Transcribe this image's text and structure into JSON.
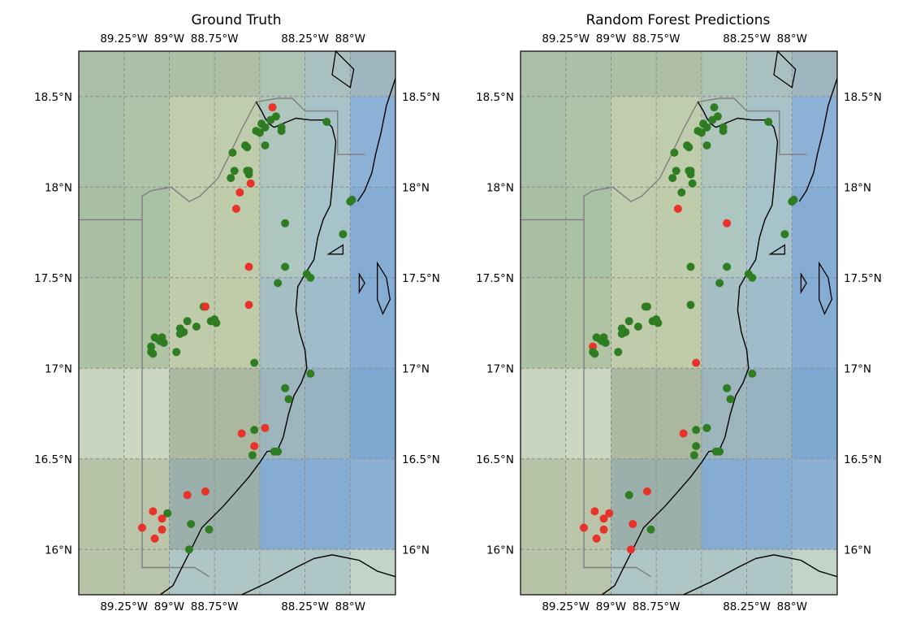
{
  "maps": [
    {
      "title": "Ground Truth",
      "points": [
        {
          "lat": 18.44,
          "lon": -88.43,
          "c": "r"
        },
        {
          "lat": 18.39,
          "lon": -88.41,
          "c": "g"
        },
        {
          "lat": 18.37,
          "lon": -88.44,
          "c": "g"
        },
        {
          "lat": 18.35,
          "lon": -88.49,
          "c": "g"
        },
        {
          "lat": 18.33,
          "lon": -88.47,
          "c": "g"
        },
        {
          "lat": 18.31,
          "lon": -88.52,
          "c": "g"
        },
        {
          "lat": 18.3,
          "lon": -88.5,
          "c": "g"
        },
        {
          "lat": 18.33,
          "lon": -88.38,
          "c": "g"
        },
        {
          "lat": 18.31,
          "lon": -88.38,
          "c": "g"
        },
        {
          "lat": 18.36,
          "lon": -88.13,
          "c": "g"
        },
        {
          "lat": 18.23,
          "lon": -88.47,
          "c": "g"
        },
        {
          "lat": 18.23,
          "lon": -88.58,
          "c": "g"
        },
        {
          "lat": 18.22,
          "lon": -88.57,
          "c": "g"
        },
        {
          "lat": 18.19,
          "lon": -88.65,
          "c": "g"
        },
        {
          "lat": 18.09,
          "lon": -88.64,
          "c": "g"
        },
        {
          "lat": 18.09,
          "lon": -88.57,
          "c": "g"
        },
        {
          "lat": 18.09,
          "lon": -88.56,
          "c": "g"
        },
        {
          "lat": 18.07,
          "lon": -88.56,
          "c": "g"
        },
        {
          "lat": 18.05,
          "lon": -88.66,
          "c": "g"
        },
        {
          "lat": 18.02,
          "lon": -88.55,
          "c": "r"
        },
        {
          "lat": 17.97,
          "lon": -88.61,
          "c": "r"
        },
        {
          "lat": 17.88,
          "lon": -88.63,
          "c": "r"
        },
        {
          "lat": 17.92,
          "lon": -88.0,
          "c": "g"
        },
        {
          "lat": 17.93,
          "lon": -87.99,
          "c": "g"
        },
        {
          "lat": 17.8,
          "lon": -88.36,
          "c": "g"
        },
        {
          "lat": 17.74,
          "lon": -88.04,
          "c": "g"
        },
        {
          "lat": 17.56,
          "lon": -88.36,
          "c": "g"
        },
        {
          "lat": 17.56,
          "lon": -88.56,
          "c": "r"
        },
        {
          "lat": 17.52,
          "lon": -88.24,
          "c": "g"
        },
        {
          "lat": 17.5,
          "lon": -88.22,
          "c": "g"
        },
        {
          "lat": 17.47,
          "lon": -88.4,
          "c": "g"
        },
        {
          "lat": 17.35,
          "lon": -88.56,
          "c": "r"
        },
        {
          "lat": 17.34,
          "lon": -88.81,
          "c": "g"
        },
        {
          "lat": 17.34,
          "lon": -88.8,
          "c": "r"
        },
        {
          "lat": 17.27,
          "lon": -88.75,
          "c": "g"
        },
        {
          "lat": 17.26,
          "lon": -88.77,
          "c": "g"
        },
        {
          "lat": 17.26,
          "lon": -88.9,
          "c": "g"
        },
        {
          "lat": 17.25,
          "lon": -88.74,
          "c": "g"
        },
        {
          "lat": 17.23,
          "lon": -88.85,
          "c": "g"
        },
        {
          "lat": 17.22,
          "lon": -88.94,
          "c": "g"
        },
        {
          "lat": 17.2,
          "lon": -88.92,
          "c": "g"
        },
        {
          "lat": 17.19,
          "lon": -88.94,
          "c": "g"
        },
        {
          "lat": 17.17,
          "lon": -89.08,
          "c": "g"
        },
        {
          "lat": 17.17,
          "lon": -89.04,
          "c": "g"
        },
        {
          "lat": 17.16,
          "lon": -89.06,
          "c": "g"
        },
        {
          "lat": 17.15,
          "lon": -89.05,
          "c": "g"
        },
        {
          "lat": 17.14,
          "lon": -89.03,
          "c": "g"
        },
        {
          "lat": 17.12,
          "lon": -89.1,
          "c": "g"
        },
        {
          "lat": 17.09,
          "lon": -89.1,
          "c": "g"
        },
        {
          "lat": 17.08,
          "lon": -89.09,
          "c": "g"
        },
        {
          "lat": 17.09,
          "lon": -88.96,
          "c": "g"
        },
        {
          "lat": 17.03,
          "lon": -88.53,
          "c": "g"
        },
        {
          "lat": 16.97,
          "lon": -88.22,
          "c": "g"
        },
        {
          "lat": 16.89,
          "lon": -88.36,
          "c": "g"
        },
        {
          "lat": 16.83,
          "lon": -88.34,
          "c": "g"
        },
        {
          "lat": 16.67,
          "lon": -88.47,
          "c": "r"
        },
        {
          "lat": 16.66,
          "lon": -88.53,
          "c": "g"
        },
        {
          "lat": 16.64,
          "lon": -88.6,
          "c": "r"
        },
        {
          "lat": 16.57,
          "lon": -88.53,
          "c": "r"
        },
        {
          "lat": 16.54,
          "lon": -88.42,
          "c": "g"
        },
        {
          "lat": 16.54,
          "lon": -88.4,
          "c": "g"
        },
        {
          "lat": 16.52,
          "lon": -88.54,
          "c": "g"
        },
        {
          "lat": 16.32,
          "lon": -88.8,
          "c": "r"
        },
        {
          "lat": 16.3,
          "lon": -88.9,
          "c": "r"
        },
        {
          "lat": 16.21,
          "lon": -89.09,
          "c": "r"
        },
        {
          "lat": 16.2,
          "lon": -89.01,
          "c": "g"
        },
        {
          "lat": 16.17,
          "lon": -89.04,
          "c": "r"
        },
        {
          "lat": 16.14,
          "lon": -88.88,
          "c": "g"
        },
        {
          "lat": 16.12,
          "lon": -89.15,
          "c": "r"
        },
        {
          "lat": 16.11,
          "lon": -89.04,
          "c": "r"
        },
        {
          "lat": 16.11,
          "lon": -88.78,
          "c": "g"
        },
        {
          "lat": 16.06,
          "lon": -89.08,
          "c": "r"
        },
        {
          "lat": 16.0,
          "lon": -88.89,
          "c": "g"
        }
      ]
    },
    {
      "title": "Random Forest Predictions",
      "points": [
        {
          "lat": 18.44,
          "lon": -88.43,
          "c": "g"
        },
        {
          "lat": 18.39,
          "lon": -88.41,
          "c": "g"
        },
        {
          "lat": 18.37,
          "lon": -88.44,
          "c": "g"
        },
        {
          "lat": 18.35,
          "lon": -88.49,
          "c": "g"
        },
        {
          "lat": 18.33,
          "lon": -88.47,
          "c": "g"
        },
        {
          "lat": 18.31,
          "lon": -88.52,
          "c": "g"
        },
        {
          "lat": 18.3,
          "lon": -88.5,
          "c": "g"
        },
        {
          "lat": 18.33,
          "lon": -88.38,
          "c": "g"
        },
        {
          "lat": 18.31,
          "lon": -88.38,
          "c": "g"
        },
        {
          "lat": 18.36,
          "lon": -88.13,
          "c": "g"
        },
        {
          "lat": 18.23,
          "lon": -88.47,
          "c": "g"
        },
        {
          "lat": 18.23,
          "lon": -88.58,
          "c": "g"
        },
        {
          "lat": 18.22,
          "lon": -88.57,
          "c": "g"
        },
        {
          "lat": 18.19,
          "lon": -88.65,
          "c": "g"
        },
        {
          "lat": 18.09,
          "lon": -88.64,
          "c": "g"
        },
        {
          "lat": 18.09,
          "lon": -88.57,
          "c": "g"
        },
        {
          "lat": 18.09,
          "lon": -88.56,
          "c": "g"
        },
        {
          "lat": 18.07,
          "lon": -88.56,
          "c": "g"
        },
        {
          "lat": 18.05,
          "lon": -88.66,
          "c": "g"
        },
        {
          "lat": 18.02,
          "lon": -88.55,
          "c": "g"
        },
        {
          "lat": 17.97,
          "lon": -88.61,
          "c": "g"
        },
        {
          "lat": 17.88,
          "lon": -88.63,
          "c": "r"
        },
        {
          "lat": 17.92,
          "lon": -88.0,
          "c": "g"
        },
        {
          "lat": 17.93,
          "lon": -87.99,
          "c": "g"
        },
        {
          "lat": 17.8,
          "lon": -88.36,
          "c": "r"
        },
        {
          "lat": 17.74,
          "lon": -88.04,
          "c": "g"
        },
        {
          "lat": 17.56,
          "lon": -88.36,
          "c": "g"
        },
        {
          "lat": 17.56,
          "lon": -88.56,
          "c": "g"
        },
        {
          "lat": 17.52,
          "lon": -88.24,
          "c": "g"
        },
        {
          "lat": 17.5,
          "lon": -88.22,
          "c": "g"
        },
        {
          "lat": 17.47,
          "lon": -88.4,
          "c": "g"
        },
        {
          "lat": 17.35,
          "lon": -88.56,
          "c": "g"
        },
        {
          "lat": 17.34,
          "lon": -88.81,
          "c": "g"
        },
        {
          "lat": 17.34,
          "lon": -88.8,
          "c": "g"
        },
        {
          "lat": 17.27,
          "lon": -88.75,
          "c": "g"
        },
        {
          "lat": 17.26,
          "lon": -88.77,
          "c": "g"
        },
        {
          "lat": 17.26,
          "lon": -88.9,
          "c": "g"
        },
        {
          "lat": 17.25,
          "lon": -88.74,
          "c": "g"
        },
        {
          "lat": 17.23,
          "lon": -88.85,
          "c": "g"
        },
        {
          "lat": 17.22,
          "lon": -88.94,
          "c": "g"
        },
        {
          "lat": 17.2,
          "lon": -88.92,
          "c": "g"
        },
        {
          "lat": 17.19,
          "lon": -88.94,
          "c": "g"
        },
        {
          "lat": 17.17,
          "lon": -89.08,
          "c": "g"
        },
        {
          "lat": 17.17,
          "lon": -89.04,
          "c": "g"
        },
        {
          "lat": 17.16,
          "lon": -89.06,
          "c": "g"
        },
        {
          "lat": 17.15,
          "lon": -89.05,
          "c": "g"
        },
        {
          "lat": 17.14,
          "lon": -89.03,
          "c": "g"
        },
        {
          "lat": 17.12,
          "lon": -89.1,
          "c": "r"
        },
        {
          "lat": 17.09,
          "lon": -89.1,
          "c": "g"
        },
        {
          "lat": 17.08,
          "lon": -89.09,
          "c": "g"
        },
        {
          "lat": 17.09,
          "lon": -88.96,
          "c": "g"
        },
        {
          "lat": 17.03,
          "lon": -88.53,
          "c": "r"
        },
        {
          "lat": 16.97,
          "lon": -88.22,
          "c": "g"
        },
        {
          "lat": 16.89,
          "lon": -88.36,
          "c": "g"
        },
        {
          "lat": 16.83,
          "lon": -88.34,
          "c": "g"
        },
        {
          "lat": 16.67,
          "lon": -88.47,
          "c": "g"
        },
        {
          "lat": 16.66,
          "lon": -88.53,
          "c": "g"
        },
        {
          "lat": 16.64,
          "lon": -88.6,
          "c": "r"
        },
        {
          "lat": 16.57,
          "lon": -88.53,
          "c": "g"
        },
        {
          "lat": 16.54,
          "lon": -88.42,
          "c": "g"
        },
        {
          "lat": 16.54,
          "lon": -88.4,
          "c": "g"
        },
        {
          "lat": 16.52,
          "lon": -88.54,
          "c": "g"
        },
        {
          "lat": 16.32,
          "lon": -88.8,
          "c": "r"
        },
        {
          "lat": 16.3,
          "lon": -88.9,
          "c": "g"
        },
        {
          "lat": 16.21,
          "lon": -89.09,
          "c": "r"
        },
        {
          "lat": 16.2,
          "lon": -89.01,
          "c": "r"
        },
        {
          "lat": 16.17,
          "lon": -89.04,
          "c": "r"
        },
        {
          "lat": 16.14,
          "lon": -88.88,
          "c": "r"
        },
        {
          "lat": 16.12,
          "lon": -89.15,
          "c": "r"
        },
        {
          "lat": 16.11,
          "lon": -89.04,
          "c": "r"
        },
        {
          "lat": 16.11,
          "lon": -88.78,
          "c": "g"
        },
        {
          "lat": 16.06,
          "lon": -89.08,
          "c": "r"
        },
        {
          "lat": 16.0,
          "lon": -88.89,
          "c": "r"
        }
      ]
    }
  ],
  "axes": {
    "lon_tick_labels": [
      "89.25°W",
      "89°W",
      "88.75°W",
      "88.25°W",
      "88°W"
    ],
    "lon_tick_values": [
      -89.25,
      -89.0,
      -88.75,
      -88.25,
      -88.0
    ],
    "lat_tick_labels": [
      "18.5°N",
      "18°N",
      "17.5°N",
      "17°N",
      "16.5°N",
      "16°N"
    ],
    "lat_tick_values": [
      18.5,
      18.0,
      17.5,
      17.0,
      16.5,
      16.0
    ],
    "lon_range": [
      -89.5,
      -87.75
    ],
    "lat_range": [
      15.75,
      18.75
    ],
    "gridlines": true
  },
  "grid_cells": {
    "lon_edges": [
      -89.5,
      -89.25,
      -89.0,
      -88.75,
      -88.5,
      -88.25,
      -88.0,
      -87.75
    ],
    "lat_edges_top_to_bottom": [
      18.75,
      18.5,
      18.0,
      17.5,
      17.0,
      16.5,
      16.0,
      15.75
    ],
    "colors": [
      [
        "#aebfa7",
        "#aebfa7",
        "#aec0a4",
        "#aebfa6",
        "#adc4b5",
        "#a9c0c1",
        "#9fb6c1"
      ],
      [
        "#a8c0a7",
        "#aec4a8",
        "#c2cdad",
        "#c0cdad",
        "#afc6bc",
        "#a8c3c8",
        "#8cb0d6"
      ],
      [
        "#a8bfa4",
        "#a9c1a5",
        "#c0cdac",
        "#bfccab",
        "#aec6c0",
        "#a6c3cc",
        "#85acd3"
      ],
      [
        "#acc2a4",
        "#b0c3a4",
        "#bfcbaa",
        "#c0cca9",
        "#a6bfc4",
        "#9fbccb",
        "#85acd3"
      ],
      [
        "#c7d4bf",
        "#ccd7c1",
        "#aab9a0",
        "#a9b89f",
        "#9db5bc",
        "#97b2c0",
        "#7ea8cf"
      ],
      [
        "#b8c4a8",
        "#bac5a9",
        "#9bb0aa",
        "#9bb0a8",
        "#86acd2",
        "#86acd2",
        "#8ab0d2"
      ],
      [
        "#b8c4a8",
        "#b9c5aa",
        "#aec6c5",
        "#aec6c5",
        "#aec6c5",
        "#aec6c5",
        "#c2d3c7"
      ]
    ]
  },
  "colors": {
    "present": "#e8322a",
    "absent": "#2f7d22",
    "border": "#7f7f7f",
    "coast": "#000000",
    "gridline": "#8a8a8a"
  }
}
